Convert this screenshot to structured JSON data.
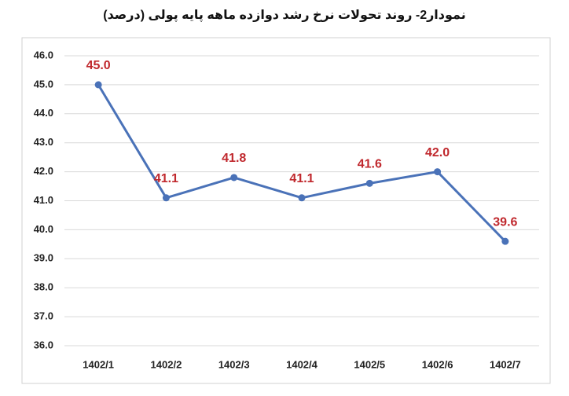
{
  "chart_data": {
    "type": "line",
    "title": "نمودار2- روند تحولات نرخ رشد دوازده ماهه پایه پولی (درصد)",
    "categories": [
      "1402/1",
      "1402/2",
      "1402/3",
      "1402/4",
      "1402/5",
      "1402/6",
      "1402/7"
    ],
    "values": [
      45.0,
      41.1,
      41.8,
      41.1,
      41.6,
      42.0,
      39.6
    ],
    "value_labels": [
      "45.0",
      "41.1",
      "41.8",
      "41.1",
      "41.6",
      "42.0",
      "39.6"
    ],
    "color": "#4a72b8",
    "label_color": "#c0282d",
    "ylim": [
      36,
      46
    ],
    "yticks": [
      {
        "value": 36,
        "label": "36.0"
      },
      {
        "value": 37,
        "label": "37.0"
      },
      {
        "value": 38,
        "label": "38.0"
      },
      {
        "value": 39,
        "label": "39.0"
      },
      {
        "value": 40,
        "label": "40.0"
      },
      {
        "value": 41,
        "label": "41.0"
      },
      {
        "value": 42,
        "label": "42.0"
      },
      {
        "value": 43,
        "label": "43.0"
      },
      {
        "value": 44,
        "label": "44.0"
      },
      {
        "value": 45,
        "label": "45.0"
      },
      {
        "value": 46,
        "label": "46.0"
      }
    ],
    "grid": true
  }
}
